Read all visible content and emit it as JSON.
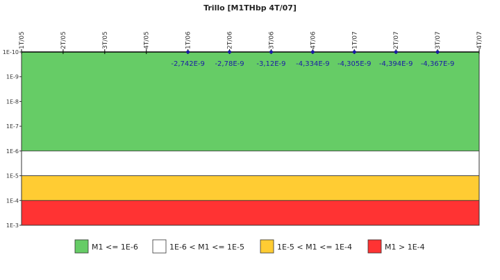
{
  "chart_data": {
    "type": "line",
    "title": "Trillo [M1THbp 4T/07]",
    "categories": [
      "1T/05",
      "2T/05",
      "3T/05",
      "4T/05",
      "1T/06",
      "2T/06",
      "3T/06",
      "4T/06",
      "1T/07",
      "2T/07",
      "3T/07",
      "4T/07"
    ],
    "y_scale": "log",
    "y_ticks": [
      "1E-10",
      "1E-9",
      "1E-8",
      "1E-7",
      "1E-6",
      "1E-5",
      "1E-4",
      "1E-3"
    ],
    "y_tick_values": [
      1e-10,
      1e-09,
      1e-08,
      1e-07,
      1e-06,
      1e-05,
      0.0001,
      0.001
    ],
    "ylim": [
      1e-10,
      0.001
    ],
    "y_inverted": true,
    "series": [
      {
        "points": [
          {
            "x": "1T/06",
            "y": -2.742e-09,
            "label": "-2,742E-9"
          },
          {
            "x": "2T/06",
            "y": -2.78e-09,
            "label": "-2,78E-9"
          },
          {
            "x": "3T/06",
            "y": -3.12e-09,
            "label": "-3,12E-9"
          },
          {
            "x": "4T/06",
            "y": -4.334e-09,
            "label": "-4,334E-9"
          },
          {
            "x": "1T/07",
            "y": -4.305e-09,
            "label": "-4,305E-9"
          },
          {
            "x": "2T/07",
            "y": -4.394e-09,
            "label": "-4,394E-9"
          },
          {
            "x": "3T/07",
            "y": -4.367e-09,
            "label": "-4,367E-9"
          }
        ],
        "color": "#1a1aa6"
      }
    ],
    "bands": [
      {
        "from": 1e-10,
        "to": 1e-06,
        "color": "#66cc66",
        "label": "M1 <= 1E-6"
      },
      {
        "from": 1e-06,
        "to": 1e-05,
        "color": "#ffffff",
        "label": "1E-6 < M1 <= 1E-5"
      },
      {
        "from": 1e-05,
        "to": 0.0001,
        "color": "#ffcc33",
        "label": "1E-5 < M1 <= 1E-4"
      },
      {
        "from": 0.0001,
        "to": 0.001,
        "color": "#ff3333",
        "label": "M1 > 1E-4"
      }
    ],
    "grid": false,
    "legend_position": "bottom"
  }
}
